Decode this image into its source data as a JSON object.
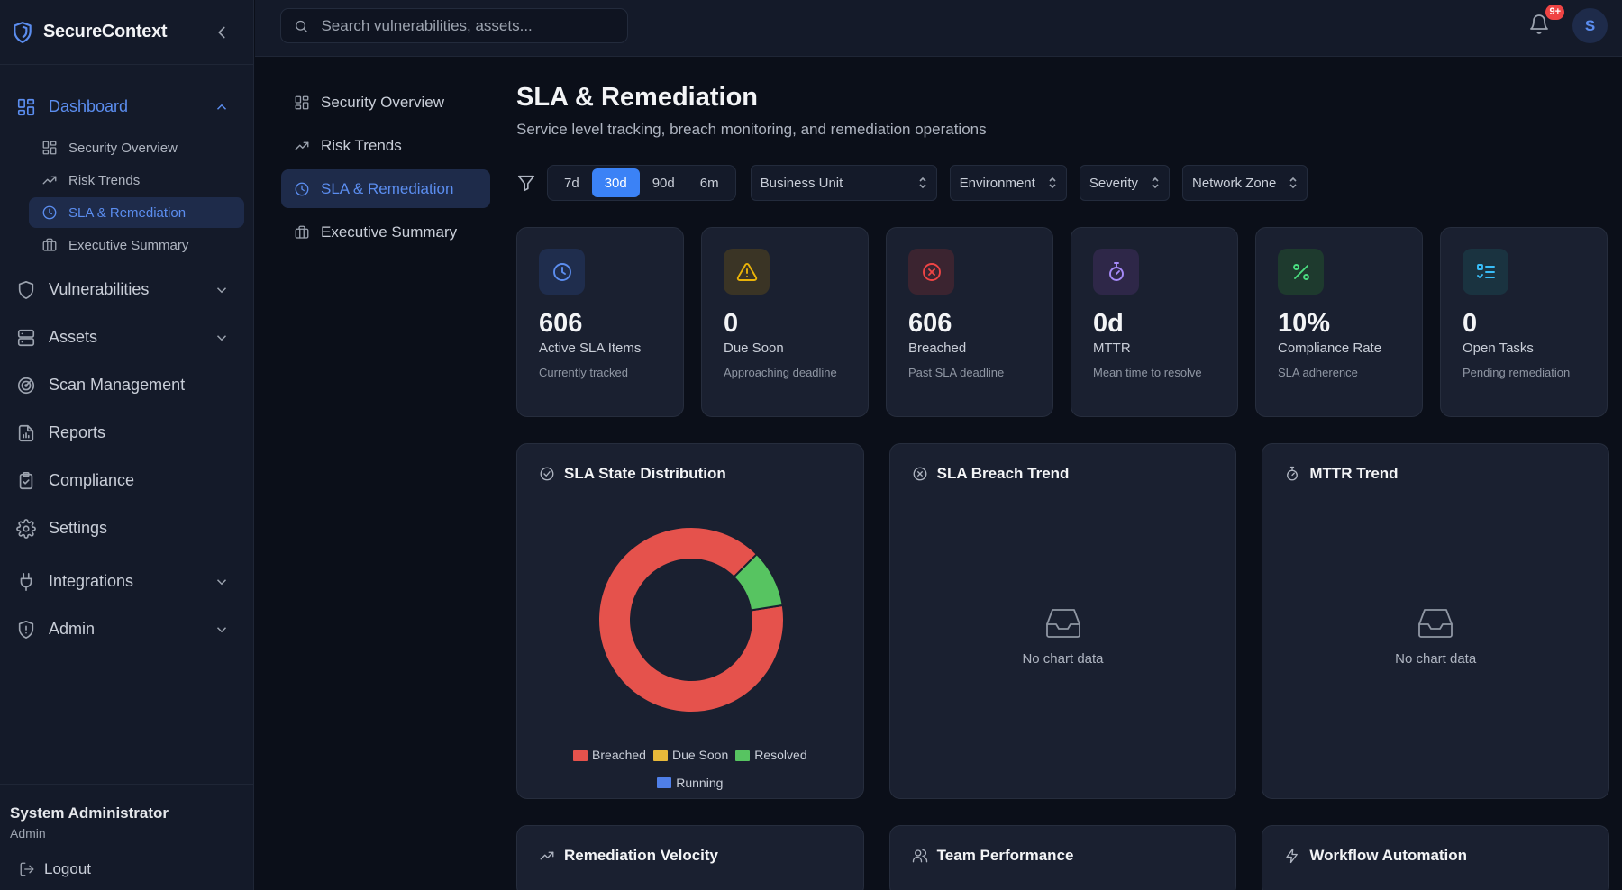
{
  "app": {
    "name": "SecureContext"
  },
  "sidebar": {
    "items": [
      {
        "label": "Dashboard",
        "icon": "dashboard-icon",
        "expanded": true
      },
      {
        "label": "Vulnerabilities",
        "icon": "shield-icon"
      },
      {
        "label": "Assets",
        "icon": "server-icon"
      },
      {
        "label": "Scan Management",
        "icon": "radar-icon"
      },
      {
        "label": "Reports",
        "icon": "report-icon"
      },
      {
        "label": "Compliance",
        "icon": "clipboard-check-icon"
      },
      {
        "label": "Settings",
        "icon": "gear-icon"
      },
      {
        "label": "Integrations",
        "icon": "plug-icon"
      },
      {
        "label": "Admin",
        "icon": "shield-alert-icon"
      }
    ],
    "dashboard_sub": [
      {
        "label": "Security Overview"
      },
      {
        "label": "Risk Trends"
      },
      {
        "label": "SLA & Remediation",
        "active": true
      },
      {
        "label": "Executive Summary"
      }
    ],
    "user": {
      "name": "System Administrator",
      "role": "Admin",
      "logout_label": "Logout"
    }
  },
  "header": {
    "search_placeholder": "Search vulnerabilities, assets...",
    "notification_badge": "9+",
    "avatar_initial": "S"
  },
  "subnav": [
    {
      "label": "Security Overview"
    },
    {
      "label": "Risk Trends"
    },
    {
      "label": "SLA & Remediation",
      "active": true
    },
    {
      "label": "Executive Summary"
    }
  ],
  "main": {
    "title": "SLA & Remediation",
    "subtitle": "Service level tracking, breach monitoring, and remediation operations",
    "ranges": [
      "7d",
      "30d",
      "90d",
      "6m"
    ],
    "active_range": "30d",
    "filters": [
      "Business Unit",
      "Environment",
      "Severity",
      "Network Zone"
    ],
    "kpis": [
      {
        "value": "606",
        "label": "Active SLA Items",
        "desc": "Currently tracked",
        "icon": "clock-icon",
        "color": "#5b8def",
        "bg": "#1f2d4d"
      },
      {
        "value": "0",
        "label": "Due Soon",
        "desc": "Approaching deadline",
        "icon": "warning-icon",
        "color": "#eab308",
        "bg": "#3a3425"
      },
      {
        "value": "606",
        "label": "Breached",
        "desc": "Past SLA deadline",
        "icon": "x-circle-icon",
        "color": "#ef4444",
        "bg": "#3b2430"
      },
      {
        "value": "0d",
        "label": "MTTR",
        "desc": "Mean time to resolve",
        "icon": "stopwatch-icon",
        "color": "#a78bfa",
        "bg": "#2e2748"
      },
      {
        "value": "10%",
        "label": "Compliance Rate",
        "desc": "SLA adherence",
        "icon": "percent-icon",
        "color": "#4ade80",
        "bg": "#1e3a2e"
      },
      {
        "value": "0",
        "label": "Open Tasks",
        "desc": "Pending remediation",
        "icon": "list-check-icon",
        "color": "#38bdf8",
        "bg": "#1a3340"
      }
    ],
    "charts": {
      "sla_state": {
        "title": "SLA State Distribution"
      },
      "breach_trend": {
        "title": "SLA Breach Trend",
        "empty_text": "No chart data"
      },
      "mttr_trend": {
        "title": "MTTR Trend",
        "empty_text": "No chart data"
      }
    },
    "bottom_cards": [
      {
        "title": "Remediation Velocity"
      },
      {
        "title": "Team Performance"
      },
      {
        "title": "Workflow Automation"
      }
    ]
  },
  "chart_data": {
    "type": "pie",
    "style": "donut",
    "categories": [
      "Breached",
      "Due Soon",
      "Resolved",
      "Running"
    ],
    "values": [
      90,
      0,
      10,
      0
    ],
    "colors": [
      "#e5524c",
      "#e8b93a",
      "#57c461",
      "#4f7fe8"
    ],
    "legend": "bottom"
  }
}
